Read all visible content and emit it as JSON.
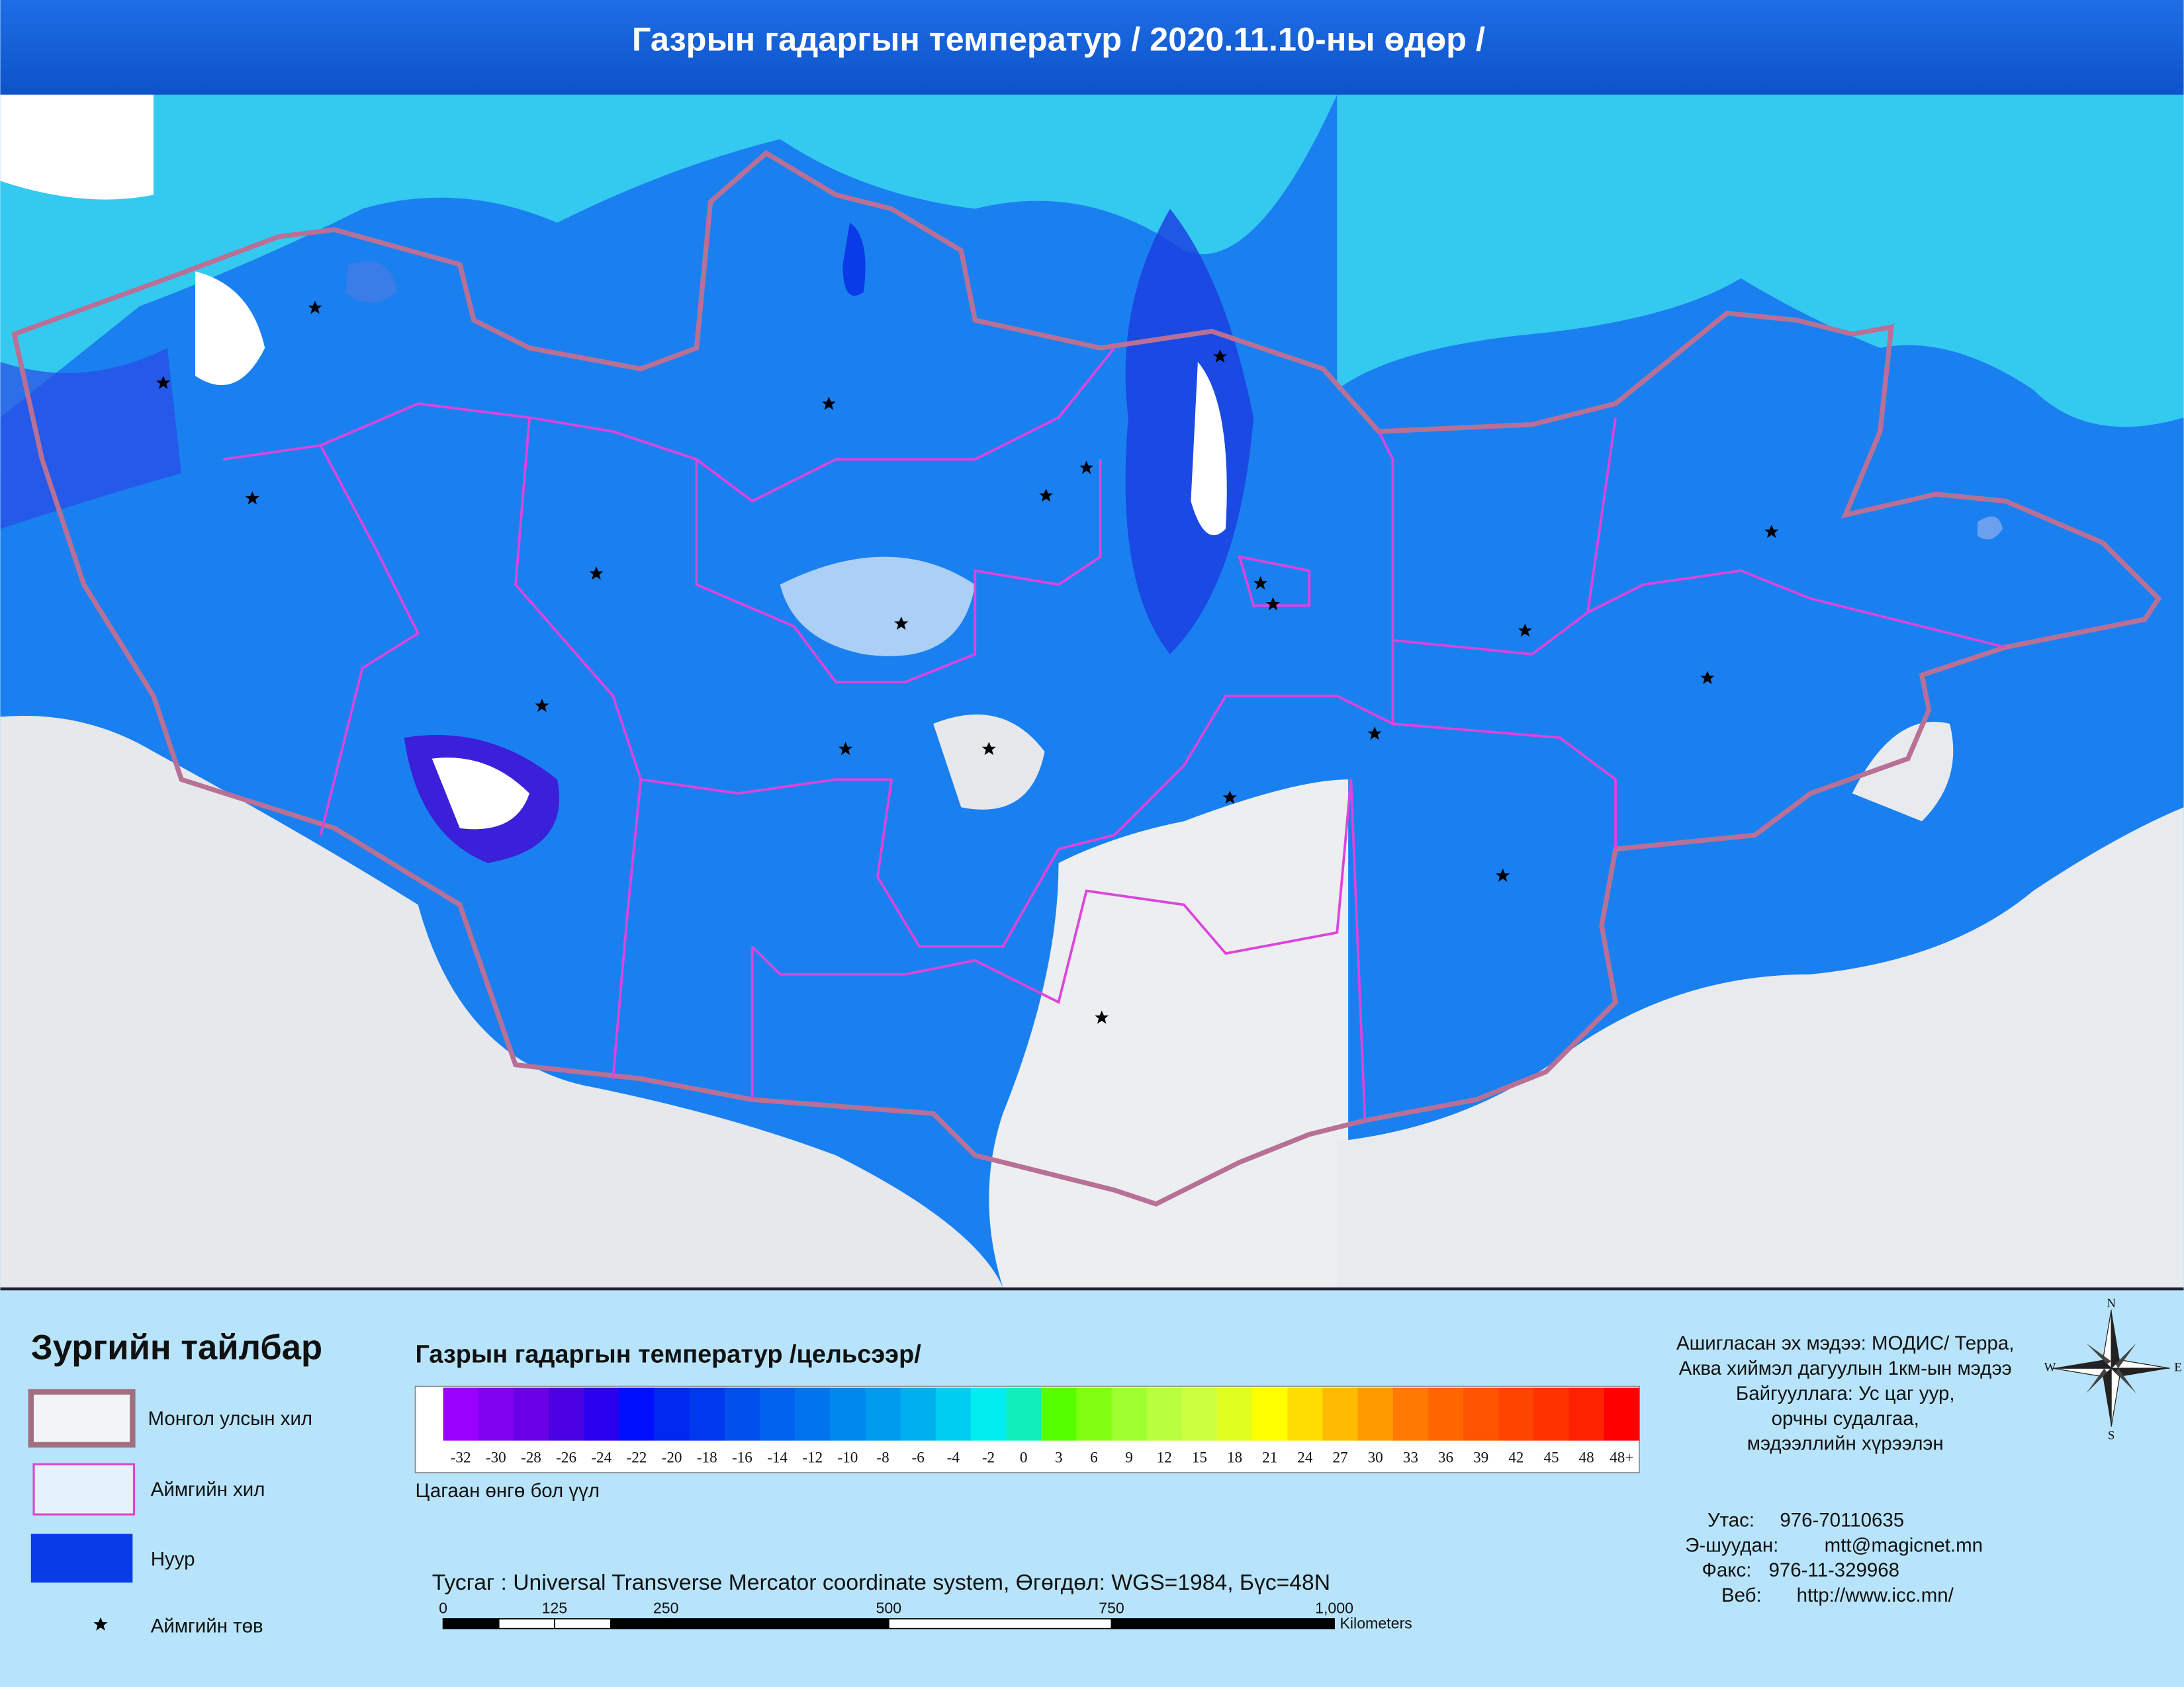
{
  "header": {
    "title": "Газрын гадаргын температур / 2020.11.10-ны өдөр /"
  },
  "legend": {
    "title": "Зургийн тайлбар",
    "items": [
      {
        "label": "Монгол улсын хил"
      },
      {
        "label": "Аймгийн хил"
      },
      {
        "label": "Нуур"
      },
      {
        "label": "Аймгийн төв"
      }
    ]
  },
  "colorbar": {
    "title": "Газрын гадаргын температур /цельсээр/",
    "note": "Цагаан өнгө бол үүл",
    "labels": [
      "-32",
      "-30",
      "-28",
      "-26",
      "-24",
      "-22",
      "-20",
      "-18",
      "-16",
      "-14",
      "-12",
      "-10",
      "-8",
      "-6",
      "-4",
      "-2",
      "0",
      "3",
      "6",
      "9",
      "12",
      "15",
      "18",
      "21",
      "24",
      "27",
      "30",
      "33",
      "36",
      "39",
      "42",
      "45",
      "48",
      "48+"
    ],
    "colors": [
      "#9900ff",
      "#8000f0",
      "#6a00e6",
      "#4a00e0",
      "#2a00ee",
      "#0010ff",
      "#0028f0",
      "#0038ee",
      "#0050ee",
      "#0062ee",
      "#0074ee",
      "#0088ee",
      "#009aee",
      "#00b0ee",
      "#00cef0",
      "#00eef0",
      "#10eebb",
      "#55ff00",
      "#80ff10",
      "#a0ff30",
      "#b8ff40",
      "#ccff40",
      "#e0ff20",
      "#ffff00",
      "#ffdd00",
      "#ffbb00",
      "#ff9a00",
      "#ff7a00",
      "#ff6600",
      "#ff5500",
      "#ff4400",
      "#ff3300",
      "#ff2200",
      "#ff0000"
    ]
  },
  "projection": "Тусгаг : Universal Transverse Mercator coordinate system, Өгөгдөл: WGS=1984, Бүс=48N",
  "scale": {
    "ticks": [
      "0",
      "125",
      "250",
      "500",
      "750",
      "1,000"
    ],
    "unit": "Kilometers"
  },
  "source": {
    "lines": [
      "Ашигласан эх мэдээ: МОДИС/ Терра,",
      "Аква хиймэл дагуулын 1км-ын мэдээ",
      "Байгууллага: Ус цаг уур,",
      "орчны судалгаа,",
      "мэдээллийн хүрээлэн"
    ]
  },
  "contacts": [
    {
      "label": "Утас:",
      "value": "976-70110635"
    },
    {
      "label": "Э-шуудан:",
      "value": "mtt@magicnet.mn"
    },
    {
      "label": "Факс:",
      "value": "976-11-329968"
    },
    {
      "label": "Веб:",
      "value": "http://www.icc.mn/"
    }
  ],
  "compass": {
    "n": "N",
    "e": "E",
    "w": "W",
    "s": "S"
  }
}
